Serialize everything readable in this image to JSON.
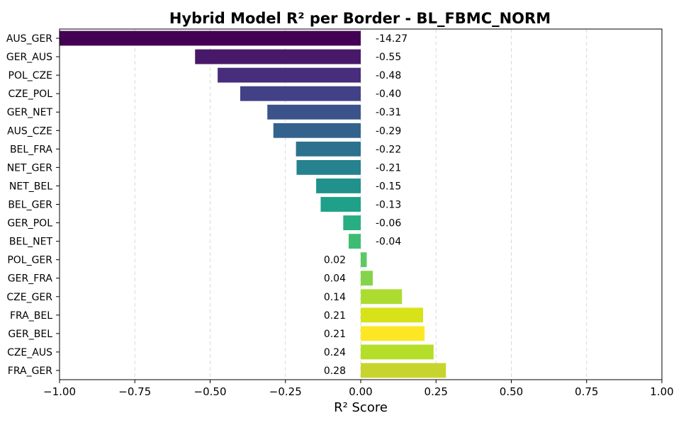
{
  "chart_data": {
    "type": "bar",
    "orientation": "horizontal",
    "title": "Hybrid Model R² per Border - BL_FBMC_NORM",
    "xlabel": "R² Score",
    "ylabel": "",
    "xlim": [
      -1.0,
      1.0
    ],
    "xticks": [
      -1.0,
      -0.75,
      -0.5,
      -0.25,
      0.0,
      0.25,
      0.5,
      0.75,
      1.0
    ],
    "xtick_labels": [
      "−1.00",
      "−0.75",
      "−0.50",
      "−0.25",
      "0.00",
      "0.25",
      "0.50",
      "0.75",
      "1.00"
    ],
    "grid": "x-dashed",
    "categories": [
      "AUS_GER",
      "GER_AUS",
      "POL_CZE",
      "CZE_POL",
      "GER_NET",
      "AUS_CZE",
      "BEL_FRA",
      "NET_GER",
      "NET_BEL",
      "BEL_GER",
      "GER_POL",
      "BEL_NET",
      "POL_GER",
      "GER_FRA",
      "CZE_GER",
      "FRA_BEL",
      "GER_BEL",
      "CZE_AUS",
      "FRA_GER"
    ],
    "values": [
      -14.27,
      -0.55,
      -0.475,
      -0.4,
      -0.31,
      -0.29,
      -0.215,
      -0.213,
      -0.148,
      -0.133,
      -0.058,
      -0.04,
      0.02,
      0.04,
      0.137,
      0.207,
      0.212,
      0.242,
      0.283
    ],
    "value_labels": [
      "-14.27",
      "-0.55",
      "-0.48",
      "-0.40",
      "-0.31",
      "-0.29",
      "-0.22",
      "-0.21",
      "-0.15",
      "-0.13",
      "-0.06",
      "-0.04",
      "0.02",
      "0.04",
      "0.14",
      "0.21",
      "0.21",
      "0.24",
      "0.28"
    ],
    "colors": [
      "#440154",
      "#48186a",
      "#472d7b",
      "#424086",
      "#3b528b",
      "#33638d",
      "#2c728e",
      "#26828e",
      "#21918c",
      "#1fa088",
      "#28ae80",
      "#3fbc73",
      "#5ec962",
      "#84d44b",
      "#addc30",
      "#d8e219",
      "#fde725",
      "#b5de2b",
      "#c8d42e"
    ]
  }
}
